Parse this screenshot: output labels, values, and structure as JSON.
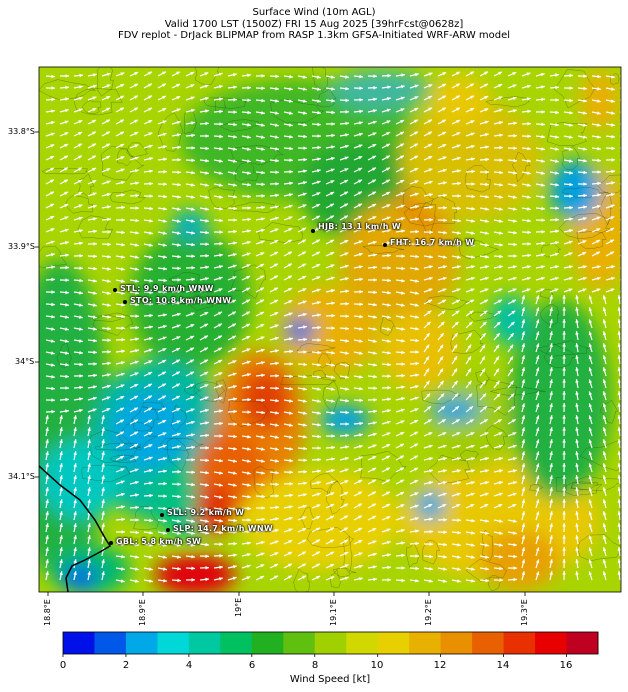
{
  "title": {
    "line1": "Surface Wind (10m AGL)",
    "line2": "Valid 1700 LST (1500Z) FRI 15 Aug 2025 [39hrFcst@0628z]",
    "line3": "FDV replot - DrJack BLIPMAP from RASP 1.3km GFSA-Initiated WRF-ARW model"
  },
  "axes": {
    "lat_ticks": [
      "33.8°S",
      "33.9°S",
      "34°S",
      "34.1°S"
    ],
    "lon_ticks": [
      "18.8°E",
      "18.9°E",
      "19°E",
      "19.1°E",
      "19.2°E",
      "19.3°E"
    ]
  },
  "stations": [
    {
      "id": "hjb",
      "label": "HJB: 13.1 km/h W"
    },
    {
      "id": "fht",
      "label": "FHT: 16.7 km/h W"
    },
    {
      "id": "stl",
      "label": "STL: 9.9 km/h WNW"
    },
    {
      "id": "sto",
      "label": "STO: 10.8 km/h WNW"
    },
    {
      "id": "sll",
      "label": "SLL: 9.2 km/h W"
    },
    {
      "id": "slp",
      "label": "SLP: 14.7 km/h WNW"
    },
    {
      "id": "gbl",
      "label": "GBL: 5.8 km/h SW"
    }
  ],
  "colorbar": {
    "title": "Wind Speed [kt]",
    "tick_labels": [
      "0",
      "2",
      "4",
      "6",
      "8",
      "10",
      "12",
      "14",
      "16"
    ],
    "colors": [
      "#0010e8",
      "#0058e8",
      "#00a8e8",
      "#00d8d8",
      "#00c8a0",
      "#00c060",
      "#20b020",
      "#60c010",
      "#a0d000",
      "#d0d800",
      "#e8d000",
      "#e8b000",
      "#e89000",
      "#e86000",
      "#e83000",
      "#e80000",
      "#c00020"
    ]
  }
}
